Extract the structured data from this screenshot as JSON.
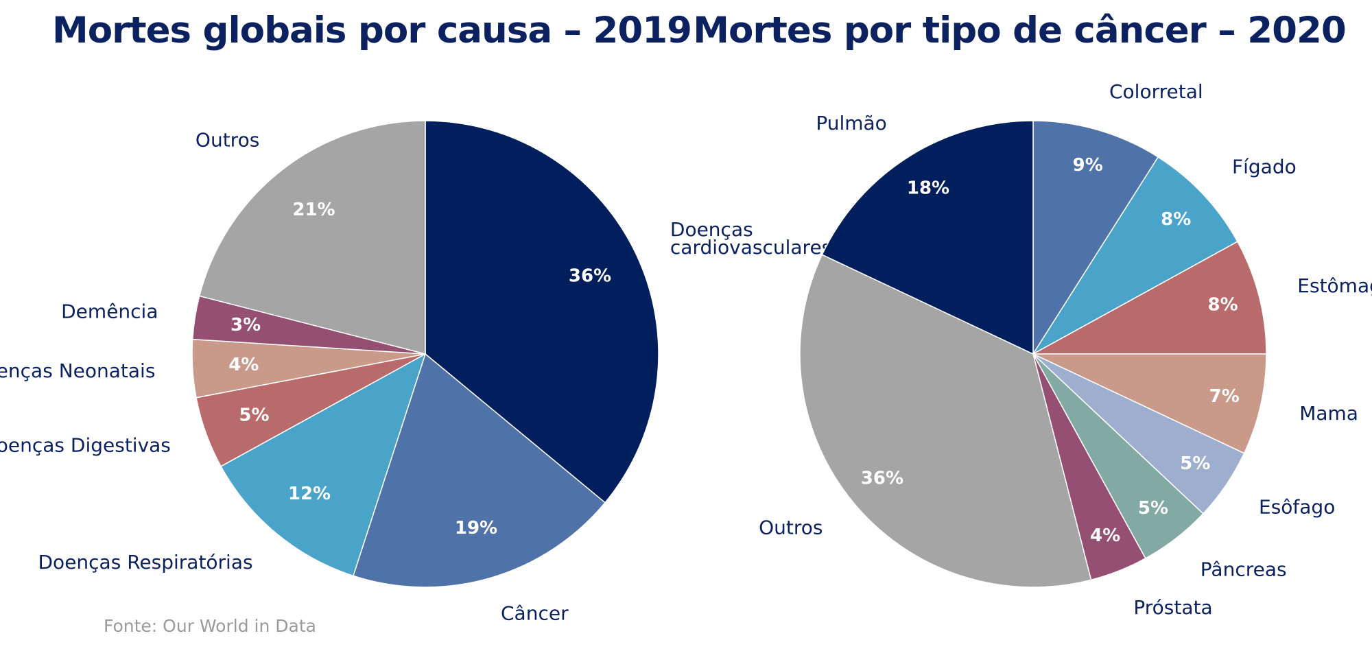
{
  "chart_data": [
    {
      "type": "pie",
      "title": "Mortes globais por causa – 2019",
      "start_angle_deg": 0,
      "direction": "clockwise",
      "slices": [
        {
          "name": "Doenças cardiovasculares",
          "lines": [
            "Doenças",
            "cardiovasculares"
          ],
          "value": 36,
          "label": "36%",
          "color": "#001f5c"
        },
        {
          "name": "Câncer",
          "lines": [
            "Câncer"
          ],
          "value": 19,
          "label": "19%",
          "color": "#4f72a8"
        },
        {
          "name": "Doenças Respiratórias",
          "lines": [
            "Doenças Respiratórias"
          ],
          "value": 12,
          "label": "12%",
          "color": "#4aa3c9"
        },
        {
          "name": "Doenças Digestivas",
          "lines": [
            "Doenças Digestivas"
          ],
          "value": 5,
          "label": "5%",
          "color": "#b96a6b"
        },
        {
          "name": "Doenças Neonatais",
          "lines": [
            "Doenças Neonatais"
          ],
          "value": 4,
          "label": "4%",
          "color": "#c99a8a"
        },
        {
          "name": "Demência",
          "lines": [
            "Demência"
          ],
          "value": 3,
          "label": "3%",
          "color": "#954f72"
        },
        {
          "name": "Outros",
          "lines": [
            "Outros"
          ],
          "value": 21,
          "label": "21%",
          "color": "#a5a5a5"
        }
      ]
    },
    {
      "type": "pie",
      "title": "Mortes por tipo de câncer – 2020",
      "start_angle_deg": 0,
      "direction": "clockwise",
      "slices": [
        {
          "name": "Colorretal",
          "lines": [
            "Colorretal"
          ],
          "value": 9,
          "label": "9%",
          "color": "#4f72a8"
        },
        {
          "name": "Fígado",
          "lines": [
            "Fígado"
          ],
          "value": 8,
          "label": "8%",
          "color": "#4aa3c9"
        },
        {
          "name": "Estômago",
          "lines": [
            "Estômago"
          ],
          "value": 8,
          "label": "8%",
          "color": "#b96a6b"
        },
        {
          "name": "Mama",
          "lines": [
            "Mama"
          ],
          "value": 7,
          "label": "7%",
          "color": "#c99a8a"
        },
        {
          "name": "Esôfago",
          "lines": [
            "Esôfago"
          ],
          "value": 5,
          "label": "5%",
          "color": "#9daecf"
        },
        {
          "name": "Pâncreas",
          "lines": [
            "Pâncreas"
          ],
          "value": 5,
          "label": "5%",
          "color": "#82aaa3"
        },
        {
          "name": "Próstata",
          "lines": [
            "Próstata"
          ],
          "value": 4,
          "label": "4%",
          "color": "#954f72"
        },
        {
          "name": "Outros",
          "lines": [
            "Outros"
          ],
          "value": 36,
          "label": "36%",
          "color": "#a5a5a5"
        },
        {
          "name": "Pulmão",
          "lines": [
            "Pulmão"
          ],
          "value": 18,
          "label": "18%",
          "color": "#001f5c"
        }
      ]
    }
  ],
  "source": "Fonte: Our World in Data"
}
